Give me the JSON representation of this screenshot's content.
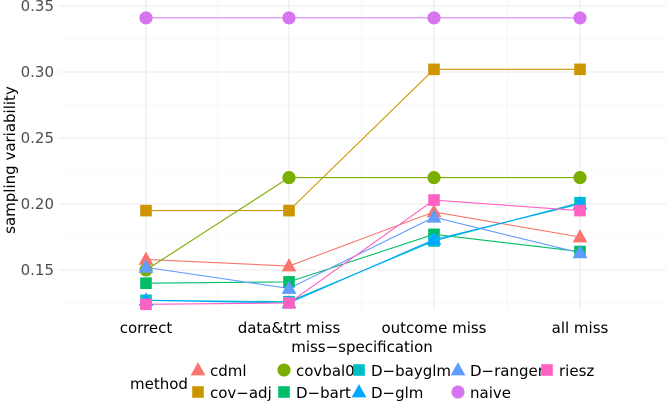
{
  "chart_data": {
    "type": "line",
    "title": "",
    "xlabel": "miss−specification",
    "ylabel": "sampling variability",
    "categories": [
      "correct",
      "data&trt miss",
      "outcome miss",
      "all miss"
    ],
    "ylim": [
      0.118,
      0.35
    ],
    "yticks": [
      "0.15",
      "0.20",
      "0.25",
      "0.30",
      "0.35"
    ],
    "ytick_values": [
      0.15,
      0.2,
      0.25,
      0.3,
      0.35
    ],
    "legend_title": "method",
    "legend_position": "bottom",
    "series": [
      {
        "name": "cdml",
        "color": "#F8766D",
        "marker": "triangle",
        "values": [
          0.158,
          0.153,
          0.194,
          0.175
        ]
      },
      {
        "name": "cov−adj",
        "color": "#CD9600",
        "marker": "square",
        "values": [
          0.195,
          0.195,
          0.302,
          0.302
        ]
      },
      {
        "name": "covbal0",
        "color": "#7CAE00",
        "marker": "circle",
        "values": [
          0.15,
          0.22,
          0.22,
          0.22
        ]
      },
      {
        "name": "D−bart",
        "color": "#00BE67",
        "marker": "square",
        "values": [
          0.14,
          0.141,
          0.177,
          0.164
        ]
      },
      {
        "name": "D−bayglm",
        "color": "#00BFC4",
        "marker": "square",
        "values": [
          0.127,
          0.126,
          0.172,
          0.201
        ]
      },
      {
        "name": "D−glm",
        "color": "#00A9FF",
        "marker": "triangle",
        "values": [
          0.127,
          0.125,
          0.173,
          0.2
        ]
      },
      {
        "name": "D−ranger",
        "color": "#619CFF",
        "marker": "triangle",
        "values": [
          0.152,
          0.136,
          0.19,
          0.163
        ]
      },
      {
        "name": "naive",
        "color": "#D874F2",
        "marker": "circle",
        "values": [
          0.341,
          0.341,
          0.341,
          0.341
        ]
      },
      {
        "name": "riesz",
        "color": "#FF61C3",
        "marker": "square",
        "values": [
          0.124,
          0.125,
          0.203,
          0.195
        ]
      }
    ],
    "legend_order": [
      "cdml",
      "cov−adj",
      "covbal0",
      "D−bart",
      "D−bayglm",
      "D−glm",
      "D−ranger",
      "naive",
      "riesz"
    ]
  }
}
